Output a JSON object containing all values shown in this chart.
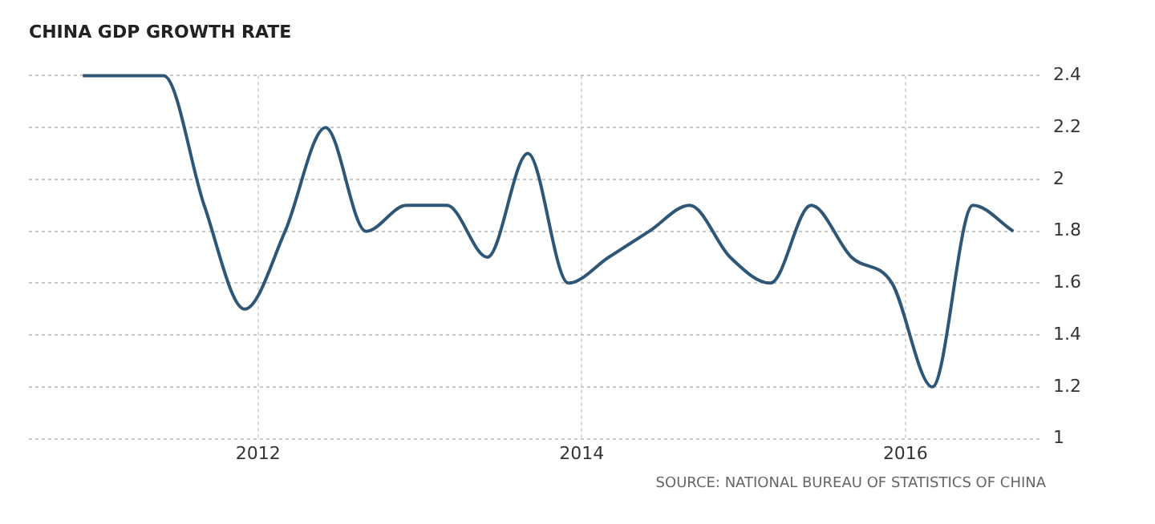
{
  "chart_data": {
    "type": "line",
    "title": "CHINA GDP GROWTH RATE",
    "x": [
      "2010-12",
      "2011-03",
      "2011-06",
      "2011-09",
      "2011-12",
      "2012-03",
      "2012-06",
      "2012-09",
      "2012-12",
      "2013-03",
      "2013-06",
      "2013-09",
      "2013-12",
      "2014-03",
      "2014-06",
      "2014-09",
      "2014-12",
      "2015-03",
      "2015-06",
      "2015-09",
      "2015-12",
      "2016-03",
      "2016-06",
      "2016-09"
    ],
    "series": [
      {
        "color": "#2d5677",
        "values": [
          2.4,
          2.4,
          2.4,
          1.9,
          1.5,
          1.8,
          2.2,
          1.8,
          1.9,
          1.9,
          1.7,
          2.1,
          1.6,
          1.7,
          1.8,
          1.9,
          1.7,
          1.6,
          1.9,
          1.7,
          1.6,
          1.2,
          1.9,
          1.8
        ]
      }
    ],
    "xlim": [
      "2010-08",
      "2016-11"
    ],
    "xticks": [
      "2012",
      "2014",
      "2016"
    ],
    "ylim": [
      1,
      2.4
    ],
    "yticks": [
      1,
      1.2,
      1.4,
      1.6,
      1.8,
      2,
      2.2,
      2.4
    ],
    "grid": true,
    "legend": false,
    "marker": "none",
    "line_style": "solid",
    "annotations": [
      "SOURCE: NATIONAL BUREAU OF STATISTICS OF CHINA"
    ]
  }
}
